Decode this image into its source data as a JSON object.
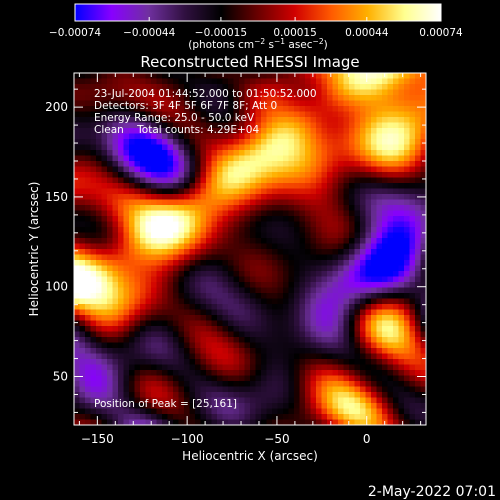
{
  "chart_data": {
    "type": "heatmap",
    "title": "Reconstructed RHESSI Image",
    "xlabel": "Heliocentric X (arcsec)",
    "ylabel": "Heliocentric Y (arcsec)",
    "xlim": [
      -163,
      33
    ],
    "ylim": [
      23,
      219
    ],
    "x_ticks": [
      -150,
      -100,
      -50,
      0
    ],
    "x_tick_labels": [
      "−150",
      "−100",
      "−50",
      "0"
    ],
    "y_ticks": [
      50,
      100,
      150,
      200
    ],
    "y_tick_labels": [
      "50",
      "100",
      "150",
      "200"
    ],
    "grid": false,
    "colorbar": {
      "min": -0.00074,
      "max": 0.00074,
      "ticks": [
        -0.00074,
        -0.00044,
        -0.00015,
        0.00015,
        0.00044,
        0.00074
      ],
      "tick_labels": [
        "−0.00074",
        "−0.00044",
        "−0.00015",
        "0.00015",
        "0.00044",
        "0.00074"
      ],
      "unit_prefix": "(photons cm",
      "unit_sup1": "−2",
      "unit_mid1": " s",
      "unit_sup2": "−1",
      "unit_mid2": " asec",
      "unit_sup3": "−2",
      "unit_suffix": ")",
      "colors": [
        "#0000ff",
        "#8800ff",
        "#7030a0",
        "#301040",
        "#000000",
        "#6a0000",
        "#d00000",
        "#ff5a00",
        "#ffb000",
        "#ffff90",
        "#ffffff"
      ]
    },
    "annotations": [
      "23-Jul-2004 01:44:52.000 to 01:50:52.000",
      "Detectors: 3F 4F 5F 6F 7F 8F; Att 0",
      "Energy Range: 25.0 - 50.0 keV",
      "Clean    Total counts: 4.29E+04"
    ],
    "peak_label": "Position of Peak = [25,161]",
    "peak_position": [
      25,
      161
    ]
  },
  "footer": {
    "timestamp": "2-May-2022 07:01"
  }
}
